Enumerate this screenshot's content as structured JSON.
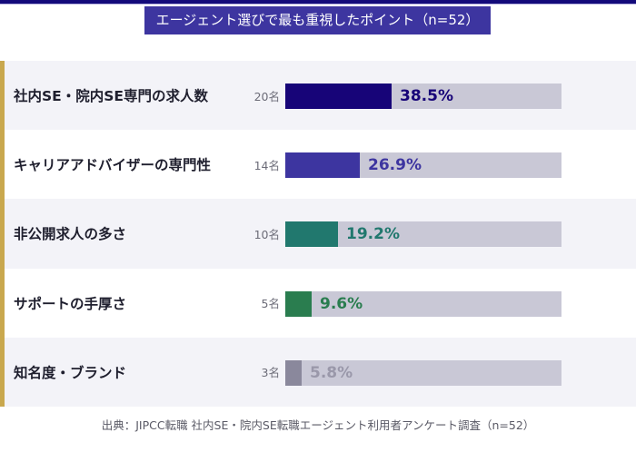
{
  "title": "エージェント選びで最も重視したポイント（n=52）",
  "source": "出典：JIPCC転職 社内SE・院内SE転職エージェント利用者アンケート調査（n=52）",
  "colors": {
    "top_bar": "#130a7a",
    "title_bg": "#3d35a0",
    "accent": "#c9a84e",
    "track": "#c9c8d6"
  },
  "chart_data": {
    "type": "bar",
    "orientation": "horizontal",
    "title": "エージェント選びで最も重視したポイント（n=52）",
    "xlabel": "",
    "ylabel": "",
    "xlim": [
      0,
      100
    ],
    "unit": "%",
    "categories": [
      "社内SE・院内SE専門の求人数",
      "キャリアアドバイザーの専門性",
      "非公開求人の多さ",
      "サポートの手厚さ",
      "知名度・ブランド"
    ],
    "counts": [
      "20名",
      "14名",
      "10名",
      "5名",
      "3名"
    ],
    "values": [
      38.5,
      26.9,
      19.2,
      9.6,
      5.8
    ],
    "labels": [
      "38.5%",
      "26.9%",
      "19.2%",
      "9.6%",
      "5.8%"
    ],
    "bar_colors": [
      "#170478",
      "#3d35a0",
      "#21786e",
      "#2a7d4f",
      "#8a889c"
    ],
    "label_colors": [
      "#170478",
      "#3d35a0",
      "#21786e",
      "#2a7d4f",
      "#9a98aa"
    ]
  }
}
